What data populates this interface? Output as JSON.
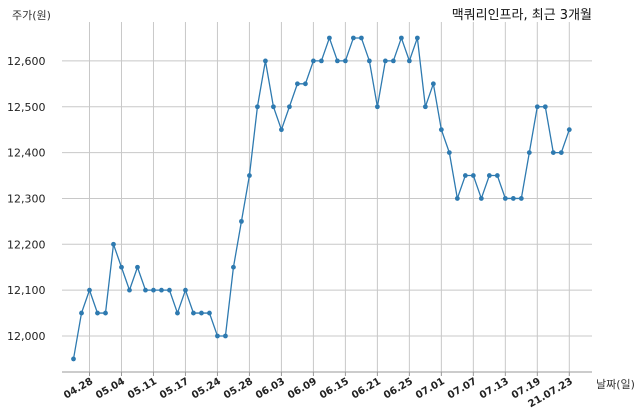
{
  "chart_data": {
    "type": "line",
    "title": "맥쿼리인프라, 최근 3개월",
    "ylabel": "주가(원)",
    "xlabel": "날짜(일)",
    "ylim": [
      11920,
      12700
    ],
    "yticks": [
      12000,
      12100,
      12200,
      12300,
      12400,
      12500,
      12600
    ],
    "ytick_labels": [
      "12,000",
      "12,100",
      "12,200",
      "12,300",
      "12,400",
      "12,500",
      "12,600"
    ],
    "xtick_labels": [
      "04.28",
      "05.04",
      "05.11",
      "05.17",
      "05.24",
      "05.28",
      "06.03",
      "06.09",
      "06.15",
      "06.21",
      "06.25",
      "07.01",
      "07.07",
      "07.13",
      "07.19",
      "21.07.23"
    ],
    "xtick_index": [
      2,
      6,
      10,
      14,
      18,
      22,
      26,
      30,
      34,
      38,
      42,
      46,
      50,
      54,
      58,
      62
    ],
    "color": "#2e7ab0",
    "grid": true,
    "values": [
      11950,
      12050,
      12100,
      12050,
      12050,
      12200,
      12150,
      12100,
      12150,
      12100,
      12100,
      12100,
      12100,
      12050,
      12100,
      12050,
      12050,
      12050,
      12000,
      12000,
      12150,
      12250,
      12350,
      12500,
      12600,
      12500,
      12450,
      12500,
      12550,
      12550,
      12600,
      12600,
      12650,
      12600,
      12600,
      12650,
      12650,
      12600,
      12500,
      12600,
      12600,
      12650,
      12600,
      12650,
      12500,
      12550,
      12450,
      12400,
      12300,
      12350,
      12350,
      12300,
      12350,
      12350,
      12300,
      12300,
      12300,
      12400,
      12500,
      12500,
      12400,
      12400,
      12450
    ]
  }
}
